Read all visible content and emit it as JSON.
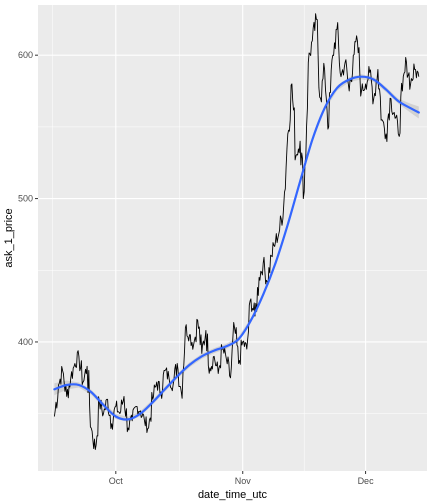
{
  "chart_data": {
    "type": "line",
    "title": "",
    "xlabel": "date_time_utc",
    "ylabel": "ask_1_price",
    "x_type": "date",
    "xlim": [
      "2017-09-12",
      "2017-12-16"
    ],
    "ylim": [
      310,
      635
    ],
    "x_ticks": [
      {
        "label": "Oct",
        "value": "2017-10-01"
      },
      {
        "label": "Nov",
        "value": "2017-11-01"
      },
      {
        "label": "Dec",
        "value": "2017-12-01"
      }
    ],
    "y_ticks": [
      400,
      500,
      600
    ],
    "grid": true,
    "colors": {
      "panel": "#ebebeb",
      "grid_major": "#ffffff",
      "price_line": "#000000",
      "smooth_line": "#3366ff",
      "smooth_band": "#bfbfbf"
    },
    "series": [
      {
        "role": "raw",
        "x": [
          "2017-09-16",
          "2017-09-17",
          "2017-09-18",
          "2017-09-19",
          "2017-09-20",
          "2017-09-21",
          "2017-09-22",
          "2017-09-23",
          "2017-09-24",
          "2017-09-25",
          "2017-09-26",
          "2017-09-27",
          "2017-09-28",
          "2017-09-29",
          "2017-09-30",
          "2017-10-01",
          "2017-10-02",
          "2017-10-03",
          "2017-10-04",
          "2017-10-05",
          "2017-10-06",
          "2017-10-07",
          "2017-10-08",
          "2017-10-09",
          "2017-10-10",
          "2017-10-11",
          "2017-10-12",
          "2017-10-13",
          "2017-10-14",
          "2017-10-15",
          "2017-10-16",
          "2017-10-17",
          "2017-10-18",
          "2017-10-19",
          "2017-10-20",
          "2017-10-21",
          "2017-10-22",
          "2017-10-23",
          "2017-10-24",
          "2017-10-25",
          "2017-10-26",
          "2017-10-27",
          "2017-10-28",
          "2017-10-29",
          "2017-10-30",
          "2017-10-31",
          "2017-11-01",
          "2017-11-02",
          "2017-11-03",
          "2017-11-04",
          "2017-11-05",
          "2017-11-06",
          "2017-11-07",
          "2017-11-08",
          "2017-11-09",
          "2017-11-10",
          "2017-11-11",
          "2017-11-12",
          "2017-11-13",
          "2017-11-14",
          "2017-11-15",
          "2017-11-16",
          "2017-11-17",
          "2017-11-18",
          "2017-11-19",
          "2017-11-20",
          "2017-11-21",
          "2017-11-22",
          "2017-11-23",
          "2017-11-24",
          "2017-11-25",
          "2017-11-26",
          "2017-11-27",
          "2017-11-28",
          "2017-11-29",
          "2017-11-30",
          "2017-12-01",
          "2017-12-02",
          "2017-12-03",
          "2017-12-04",
          "2017-12-05",
          "2017-12-06",
          "2017-12-07",
          "2017-12-08",
          "2017-12-09",
          "2017-12-10",
          "2017-12-11",
          "2017-12-12",
          "2017-12-13",
          "2017-12-14"
        ],
        "values": [
          348,
          370,
          380,
          362,
          375,
          385,
          390,
          372,
          383,
          340,
          325,
          358,
          350,
          360,
          343,
          355,
          350,
          362,
          340,
          345,
          355,
          352,
          345,
          340,
          360,
          372,
          365,
          380,
          375,
          370,
          385,
          365,
          410,
          405,
          398,
          415,
          392,
          408,
          382,
          390,
          378,
          395,
          388,
          375,
          410,
          385,
          400,
          395,
          430,
          418,
          445,
          455,
          442,
          460,
          470,
          478,
          495,
          545,
          580,
          530,
          540,
          505,
          595,
          610,
          625,
          570,
          590,
          550,
          600,
          618,
          585,
          595,
          575,
          600,
          610,
          575,
          580,
          588,
          570,
          590,
          555,
          545,
          570,
          560,
          545,
          575,
          595,
          580,
          590,
          585
        ]
      },
      {
        "role": "smooth",
        "x": [
          "2017-09-16",
          "2017-09-19",
          "2017-09-22",
          "2017-09-25",
          "2017-09-28",
          "2017-10-01",
          "2017-10-04",
          "2017-10-07",
          "2017-10-10",
          "2017-10-13",
          "2017-10-16",
          "2017-10-19",
          "2017-10-22",
          "2017-10-25",
          "2017-10-28",
          "2017-10-31",
          "2017-11-03",
          "2017-11-06",
          "2017-11-09",
          "2017-11-12",
          "2017-11-15",
          "2017-11-18",
          "2017-11-21",
          "2017-11-24",
          "2017-11-27",
          "2017-11-30",
          "2017-12-03",
          "2017-12-06",
          "2017-12-09",
          "2017-12-12",
          "2017-12-14"
        ],
        "values": [
          367,
          370,
          370,
          365,
          356,
          348,
          346,
          350,
          358,
          367,
          376,
          384,
          390,
          394,
          397,
          402,
          415,
          433,
          455,
          482,
          512,
          541,
          563,
          577,
          583,
          585,
          583,
          576,
          568,
          563,
          560
        ]
      }
    ]
  }
}
